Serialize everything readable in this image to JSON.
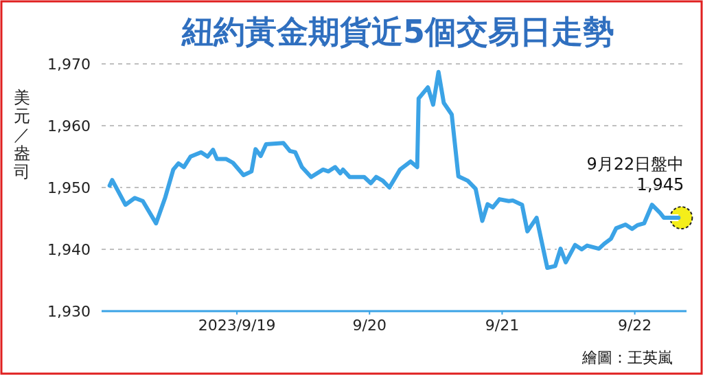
{
  "chart_data": {
    "type": "line",
    "title": "紐約黃金期貨近5個交易日走勢",
    "ylabel": "美元／盎司",
    "x": [
      "2023-09-18T00:58",
      "2023-09-18T01:26",
      "2023-09-18T03:50",
      "2023-09-18T05:31",
      "2023-09-18T06:58",
      "2023-09-18T09:22",
      "2023-09-18T11:02",
      "2023-09-18T12:29",
      "2023-09-18T13:26",
      "2023-09-18T14:24",
      "2023-09-18T15:36",
      "2023-09-18T17:31",
      "2023-09-18T18:43",
      "2023-09-18T19:41",
      "2023-09-18T20:24",
      "2023-09-18T22:05",
      "2023-09-18T23:17",
      "2023-09-19T01:12",
      "2023-09-19T02:38",
      "2023-09-19T03:22",
      "2023-09-19T04:19",
      "2023-09-19T05:17",
      "2023-09-19T08:24",
      "2023-09-19T09:36",
      "2023-09-19T10:34",
      "2023-09-19T11:46",
      "2023-09-19T13:26",
      "2023-09-19T15:36",
      "2023-09-19T16:34",
      "2023-09-19T17:46",
      "2023-09-19T18:43",
      "2023-09-19T19:12",
      "2023-09-19T20:24",
      "2023-09-19T23:02",
      "2023-09-20T00:14",
      "2023-09-20T01:12",
      "2023-09-20T02:24",
      "2023-09-20T03:36",
      "2023-09-20T05:31",
      "2023-09-20T07:26",
      "2023-09-20T08:38",
      "2023-09-20T08:53",
      "2023-09-20T10:34",
      "2023-09-20T11:31",
      "2023-09-20T12:29",
      "2023-09-20T13:26",
      "2023-09-20T14:53",
      "2023-09-20T16:05",
      "2023-09-20T17:46",
      "2023-09-20T19:12",
      "2023-09-20T20:24",
      "2023-09-20T21:22",
      "2023-09-20T22:19",
      "2023-09-20T23:31",
      "2023-09-21T01:12",
      "2023-09-21T01:55",
      "2023-09-21T03:36",
      "2023-09-21T04:34",
      "2023-09-21T06:14",
      "2023-09-21T08:10",
      "2023-09-21T09:36",
      "2023-09-21T10:34",
      "2023-09-21T11:31",
      "2023-09-21T13:12",
      "2023-09-21T14:24",
      "2023-09-21T15:22",
      "2023-09-21T17:31",
      "2023-09-21T18:29",
      "2023-09-21T19:41",
      "2023-09-21T20:38",
      "2023-09-21T22:19",
      "2023-09-21T23:31",
      "2023-09-22T00:29",
      "2023-09-22T01:41",
      "2023-09-22T03:07",
      "2023-09-22T04:34",
      "2023-09-22T05:17",
      "2023-09-22T07:55"
    ],
    "series": [
      {
        "color": "#3ba3e6",
        "values": [
          1950.3,
          1951.2,
          1947.2,
          1948.3,
          1947.8,
          1944.2,
          1948.4,
          1952.9,
          1953.9,
          1953.3,
          1955.0,
          1955.7,
          1955.0,
          1956.1,
          1954.6,
          1954.6,
          1954.0,
          1952.0,
          1952.6,
          1956.2,
          1955.1,
          1957.0,
          1957.2,
          1955.9,
          1955.7,
          1953.3,
          1951.7,
          1952.9,
          1952.6,
          1953.3,
          1952.3,
          1952.9,
          1951.7,
          1951.7,
          1950.7,
          1951.7,
          1951.1,
          1950.0,
          1952.9,
          1954.2,
          1953.3,
          1964.4,
          1966.2,
          1963.4,
          1968.7,
          1963.7,
          1961.8,
          1951.8,
          1951.1,
          1949.8,
          1944.6,
          1947.3,
          1946.8,
          1948.1,
          1947.8,
          1947.9,
          1947.2,
          1942.9,
          1945.1,
          1937.0,
          1937.3,
          1940.1,
          1937.9,
          1940.7,
          1940.0,
          1940.6,
          1940.1,
          1940.9,
          1941.7,
          1943.4,
          1944.0,
          1943.3,
          1943.9,
          1944.2,
          1947.2,
          1945.9,
          1945.1,
          1945.1
        ]
      }
    ],
    "xlim": [
      "2023-09-17T23:31",
      "2023-09-22T09:22"
    ],
    "xticks": [
      {
        "value": "2023-09-19",
        "label": "2023/9/19"
      },
      {
        "value": "2023-09-20",
        "label": "9/20"
      },
      {
        "value": "2023-09-21",
        "label": "9/21"
      },
      {
        "value": "2023-09-22",
        "label": "9/22"
      }
    ],
    "ylim": [
      1930,
      1970
    ],
    "yticks": [
      {
        "value": 1930,
        "label": "1,930"
      },
      {
        "value": 1940,
        "label": "1,940"
      },
      {
        "value": 1950,
        "label": "1,950"
      },
      {
        "value": 1960,
        "label": "1,960"
      },
      {
        "value": 1970,
        "label": "1,970"
      }
    ],
    "grid": "y",
    "line_style": "solid",
    "annotations": [
      {
        "text": "9月22日盤中\n1,945",
        "x": "2023-09-22T07:55",
        "y": 1945.1
      },
      "繪圖：王英嵐"
    ]
  }
}
